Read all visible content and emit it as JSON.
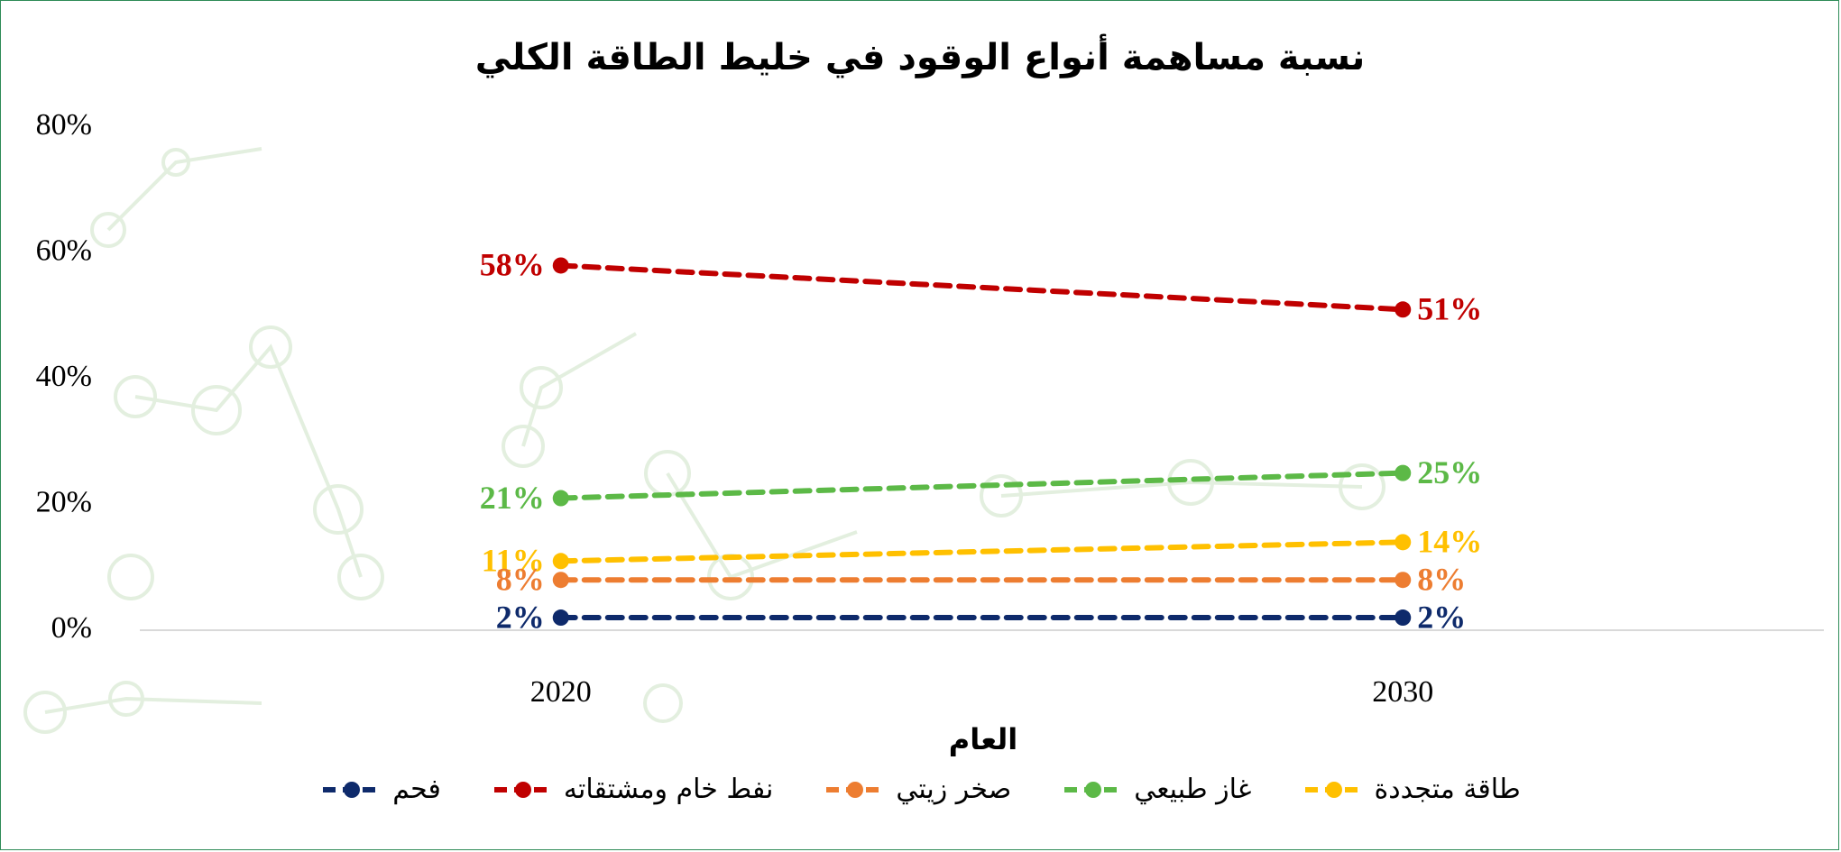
{
  "chart_data": {
    "type": "line",
    "title": "نسبة مساهمة أنواع الوقود في خليط الطاقة الكلي",
    "x_label": "العام",
    "categories": [
      "2020",
      "2030"
    ],
    "ylim": [
      0,
      80
    ],
    "yticks": [
      {
        "value": 0,
        "label": "0%"
      },
      {
        "value": 20,
        "label": "20%"
      },
      {
        "value": 40,
        "label": "40%"
      },
      {
        "value": 60,
        "label": "60%"
      },
      {
        "value": 80,
        "label": "80%"
      }
    ],
    "grid": false,
    "legend": "bottom",
    "series": [
      {
        "name": "طاقة متجددة",
        "color": "#ffc000",
        "values": [
          11,
          14
        ],
        "value_labels": [
          "11%",
          "14%"
        ]
      },
      {
        "name": "غاز طبيعي",
        "color": "#5cb947",
        "values": [
          21,
          25
        ],
        "value_labels": [
          "21%",
          "25%"
        ]
      },
      {
        "name": "صخر زيتي",
        "color": "#ed7d31",
        "values": [
          8,
          8
        ],
        "value_labels": [
          "8%",
          "8%"
        ]
      },
      {
        "name": "نفط خام ومشتقاته",
        "color": "#c00000",
        "values": [
          58,
          51
        ],
        "value_labels": [
          "58%",
          "51%"
        ]
      },
      {
        "name": "فحم",
        "color": "#0e2a6b",
        "values": [
          2,
          2
        ],
        "value_labels": [
          "2%",
          "2%"
        ]
      }
    ]
  }
}
